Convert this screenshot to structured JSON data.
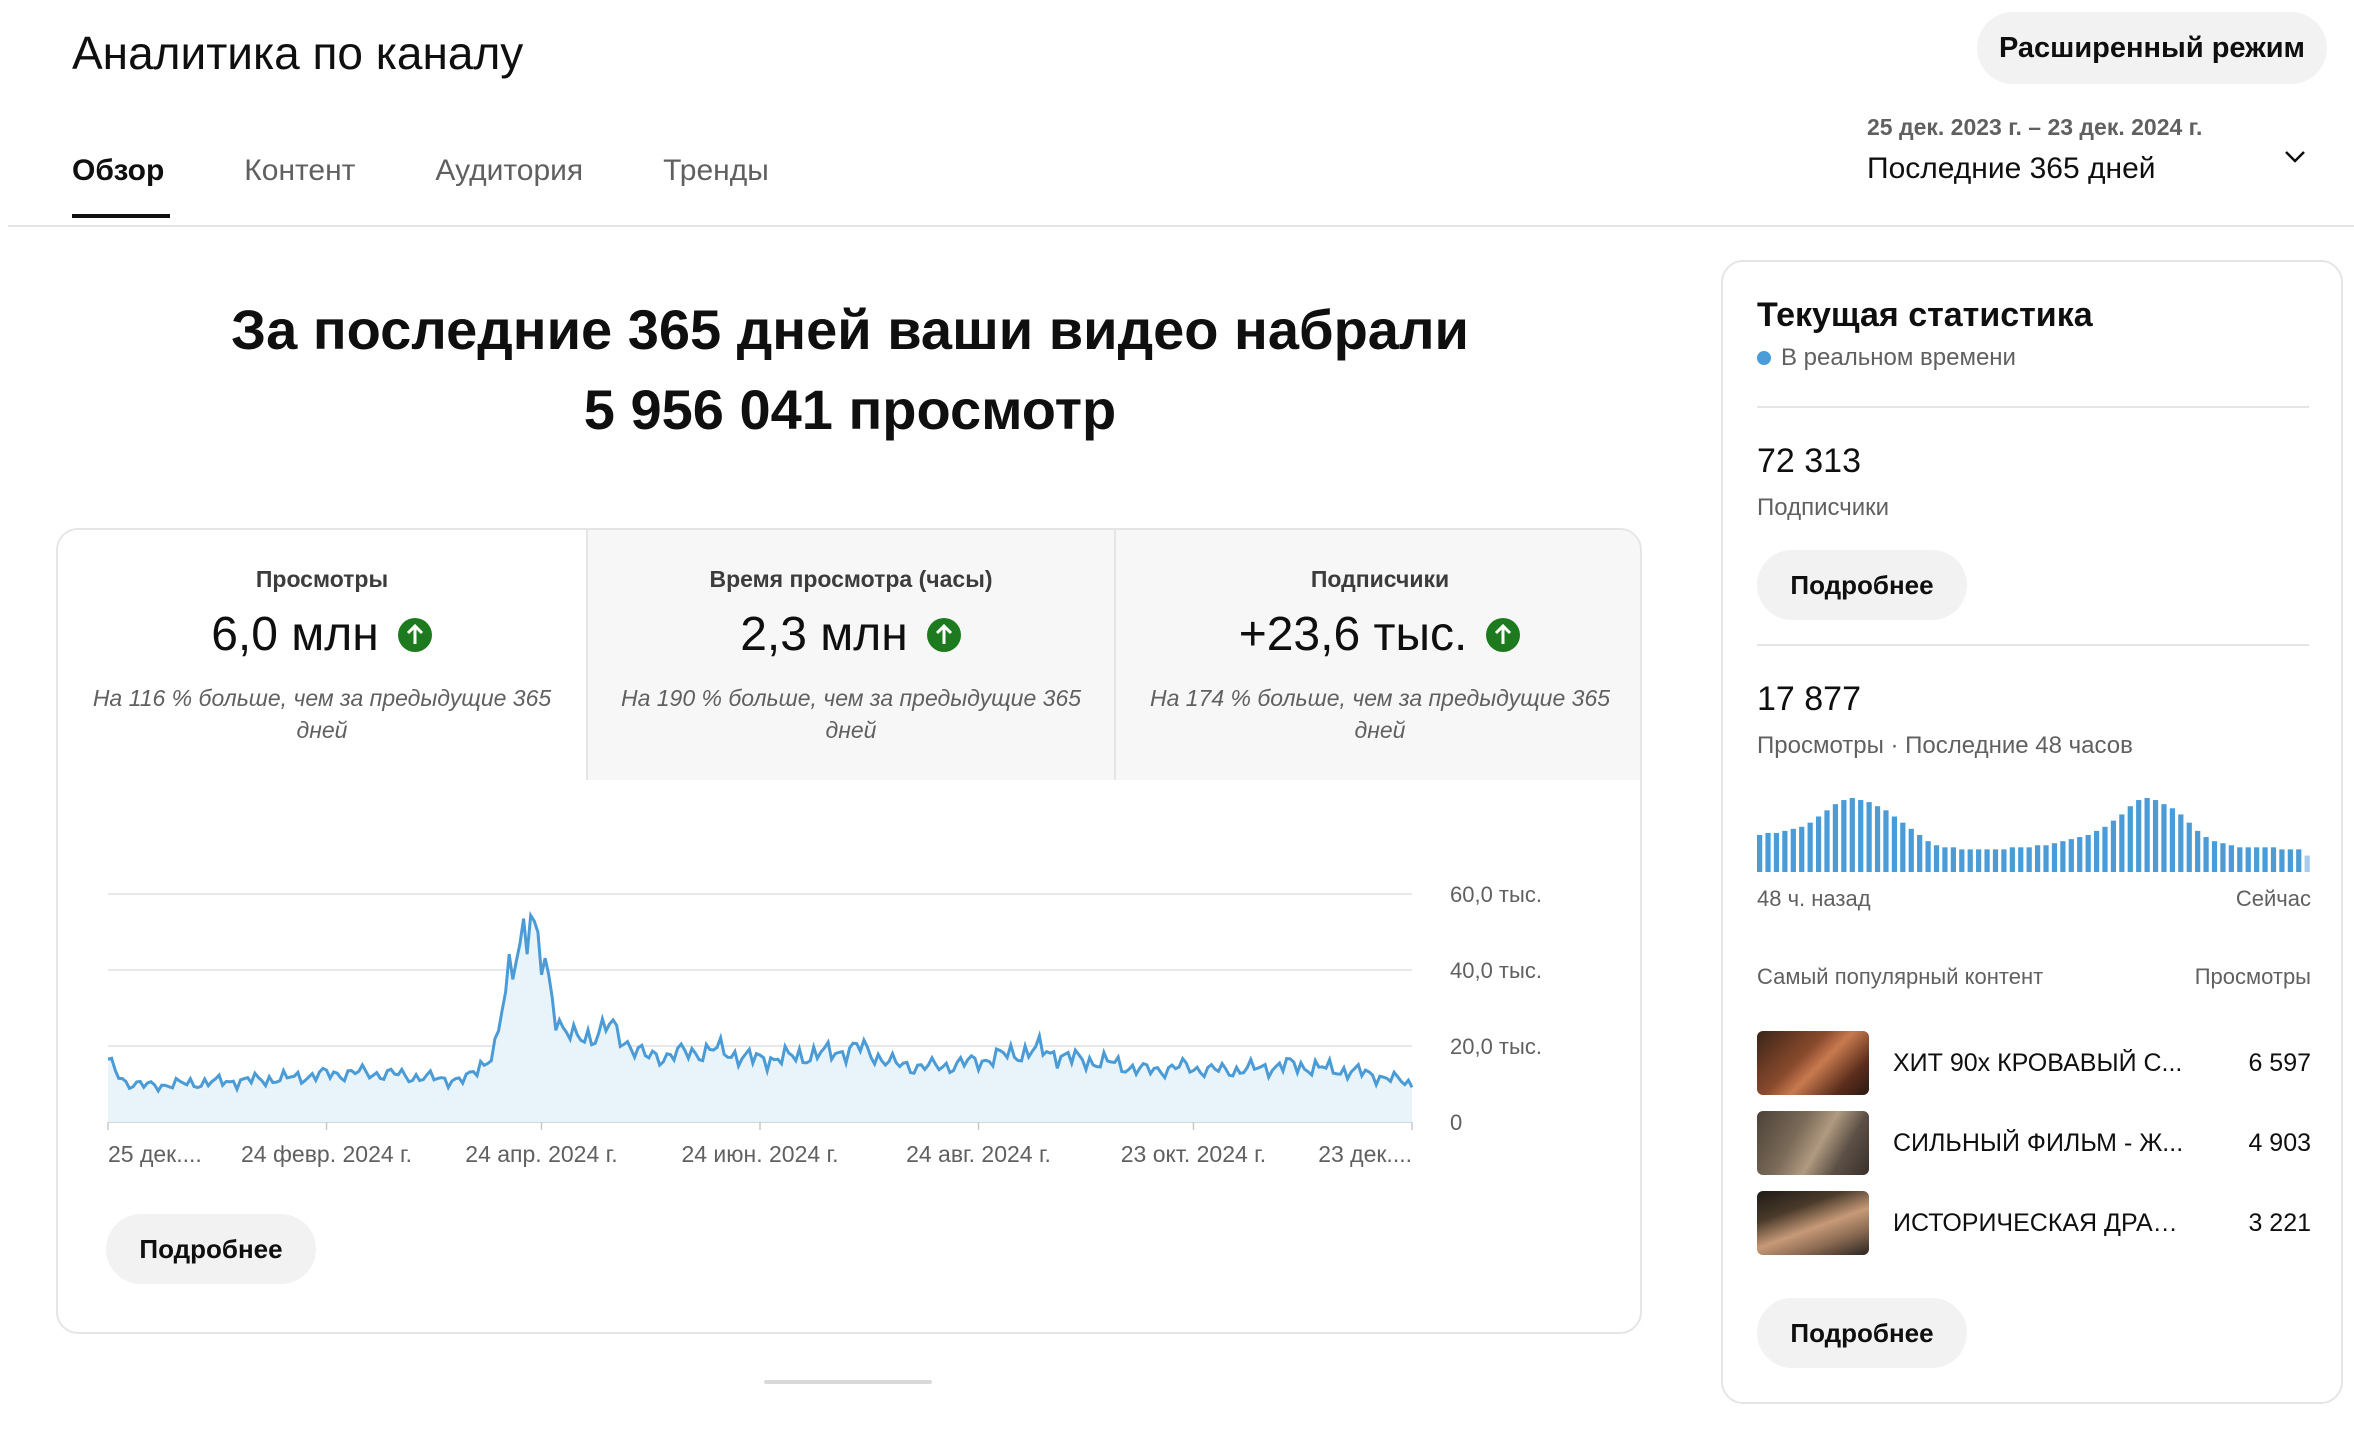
{
  "header": {
    "title": "Аналитика по каналу",
    "advanced_mode_label": "Расширенный режим"
  },
  "tabs": [
    {
      "label": "Обзор",
      "active": true
    },
    {
      "label": "Контент",
      "active": false
    },
    {
      "label": "Аудитория",
      "active": false
    },
    {
      "label": "Тренды",
      "active": false
    }
  ],
  "period": {
    "date_range": "25 дек. 2023 г. – 23 дек. 2024 г.",
    "label": "Последние 365 дней"
  },
  "headline": {
    "line1": "За последние 365 дней ваши видео набрали",
    "line2": "5 956 041 просмотр"
  },
  "metrics": [
    {
      "label": "Просмотры",
      "value": "6,0 млн",
      "note": "На 116 % больше, чем за предыдущие 365 дней",
      "trend": "up"
    },
    {
      "label": "Время просмотра (часы)",
      "value": "2,3 млн",
      "note": "На 190 % больше, чем за предыдущие 365 дней",
      "trend": "up"
    },
    {
      "label": "Подписчики",
      "value": "+23,6 тыс.",
      "note": "На 174 % больше, чем за предыдущие 365 дней",
      "trend": "up"
    }
  ],
  "chart_data": {
    "type": "area",
    "ylim": [
      0,
      60000
    ],
    "ytick_labels": [
      "0",
      "20,0 тыс.",
      "40,0 тыс.",
      "60,0 тыс."
    ],
    "ytick_values": [
      0,
      20000,
      40000,
      60000
    ],
    "xtick_labels": [
      "25 дек....",
      "24 февр. 2024 г.",
      "24 апр. 2024 г.",
      "24 июн. 2024 г.",
      "24 авг. 2024 г.",
      "23 окт. 2024 г.",
      "23 дек...."
    ],
    "xtick_days": [
      0,
      61,
      121,
      182,
      243,
      303,
      364
    ],
    "series": [
      {
        "key_points_day": [
          0,
          5,
          10,
          20,
          30,
          40,
          50,
          60,
          70,
          80,
          90,
          100,
          108,
          112,
          115,
          118,
          120,
          123,
          126,
          130,
          135,
          140,
          145,
          150,
          160,
          170,
          180,
          190,
          200,
          210,
          220,
          230,
          240,
          250,
          260,
          270,
          280,
          290,
          300,
          310,
          320,
          330,
          340,
          350,
          360,
          364
        ],
        "key_points_value": [
          15500,
          10500,
          9500,
          10000,
          10500,
          11000,
          11500,
          12500,
          13000,
          12500,
          11500,
          11000,
          19000,
          38000,
          50000,
          53000,
          44000,
          38000,
          26000,
          21500,
          23000,
          25000,
          21000,
          17000,
          18000,
          19000,
          16500,
          17000,
          18000,
          19500,
          15000,
          14500,
          15500,
          17500,
          19000,
          16500,
          15500,
          13500,
          14500,
          13500,
          14000,
          15000,
          14000,
          13000,
          11000,
          10000
        ]
      }
    ],
    "colors": {
      "line": "#4a9bd6",
      "fill": "#e9f3fa",
      "grid": "#e0e0e0"
    }
  },
  "chart_more_label": "Подробнее",
  "realtime": {
    "title": "Текущая статистика",
    "status": "В реальном времени",
    "subscribers_value": "72 313",
    "subscribers_label": "Подписчики",
    "more1_label": "Подробнее",
    "views_value": "17 877",
    "views_label": "Просмотры · Последние 48 часов",
    "mini_chart": {
      "type": "bar",
      "values": [
        18,
        19,
        19,
        20,
        21,
        22,
        24,
        27,
        30,
        33,
        35,
        36,
        35,
        34,
        32,
        30,
        27,
        24,
        21,
        18,
        15,
        13,
        12,
        12,
        11,
        11,
        11,
        11,
        11,
        11,
        12,
        12,
        12,
        13,
        13,
        14,
        15,
        16,
        17,
        18,
        20,
        22,
        25,
        28,
        32,
        35,
        36,
        35,
        33,
        31,
        28,
        24,
        20,
        17,
        15,
        14,
        13,
        12,
        12,
        12,
        12,
        12,
        11,
        11,
        11,
        8
      ],
      "color": "#4a9bd6"
    },
    "axis_left": "48 ч. назад",
    "axis_right": "Сейчас",
    "top_content_label": "Самый популярный контент",
    "top_views_label": "Просмотры",
    "top_items": [
      {
        "title": "ХИТ 90х КРОВАВЫЙ С...",
        "views": "6 597"
      },
      {
        "title": "СИЛЬНЫЙ ФИЛЬМ - Ж...",
        "views": "4 903"
      },
      {
        "title": "ИСТОРИЧЕСКАЯ ДРАМ...",
        "views": "3 221"
      }
    ],
    "more2_label": "Подробнее"
  }
}
